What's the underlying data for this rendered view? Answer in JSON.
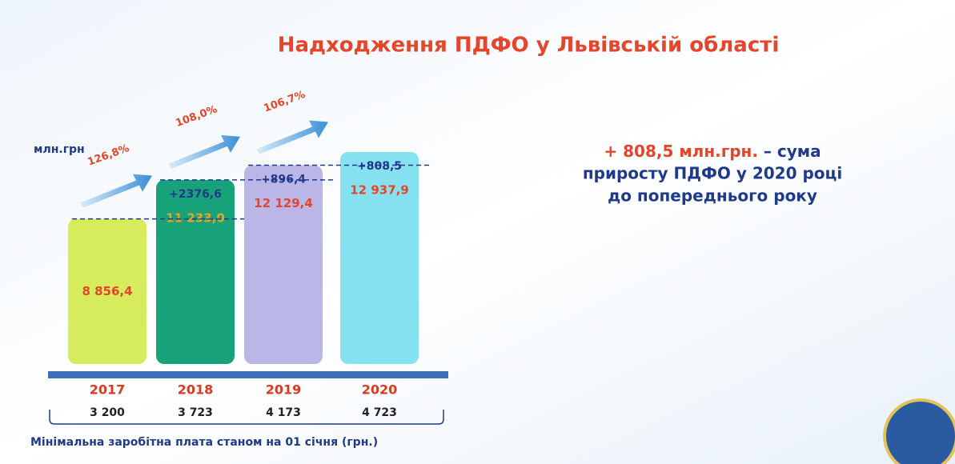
{
  "chart_data": {
    "type": "bar",
    "title": "Надходження ПДФО у Львівській області",
    "unit_label": "млн.грн",
    "categories": [
      "2017",
      "2018",
      "2019",
      "2020"
    ],
    "values": [
      8856.4,
      11233.0,
      12129.4,
      12937.9
    ],
    "value_labels": [
      "8 856,4",
      "11 233,0",
      "12 129,4",
      "12 937,9"
    ],
    "colors": [
      "#d6ec5c",
      "#17a27a",
      "#bab7e8",
      "#86e2f0"
    ],
    "increase": {
      "values": [
        null,
        2376.6,
        896.4,
        808.5
      ],
      "value_labels": [
        null,
        "+2376,6",
        "+896,4",
        "+808,5"
      ]
    },
    "growth": {
      "values": [
        null,
        126.8,
        108.0,
        106.7
      ],
      "value_labels": [
        null,
        "126,8%",
        "108,0%",
        "106,7%"
      ]
    },
    "min_wage": {
      "title": "Мінімальна заробітна плата станом на 01 січня (грн.)",
      "values": [
        3200,
        3723,
        4173,
        4723
      ],
      "value_labels": [
        "3 200",
        "3 723",
        "4 173",
        "4 723"
      ]
    },
    "note": {
      "highlight": "+ 808,5 млн.грн.",
      "line1": "– сума",
      "line2": "приросту ПДФО у 2020 році",
      "line3": "до попереднього року"
    }
  }
}
